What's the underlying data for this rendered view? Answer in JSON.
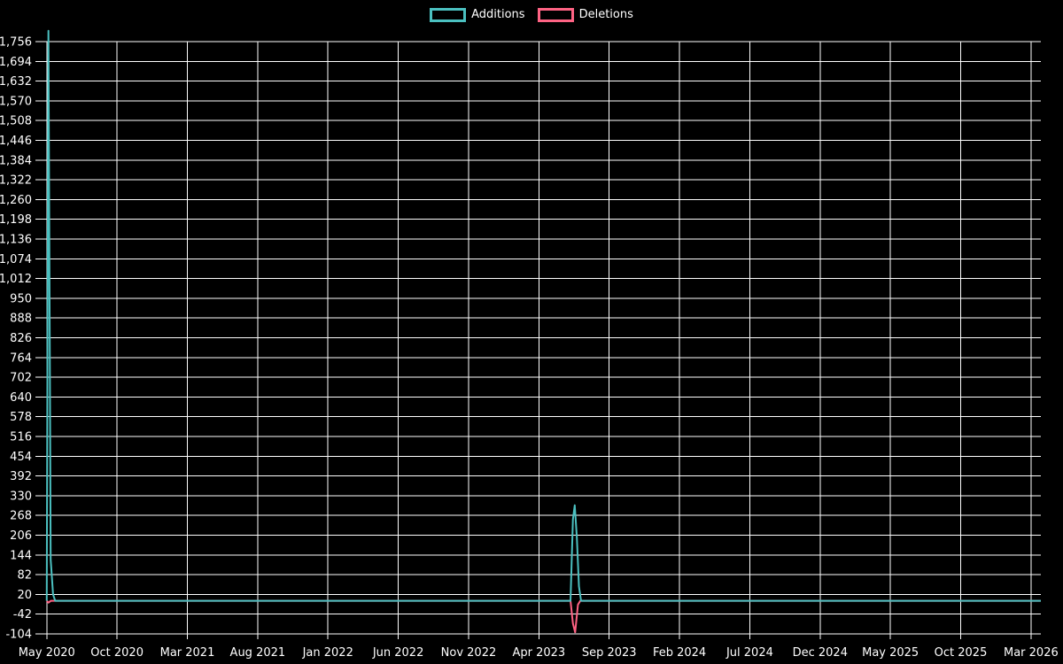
{
  "chart_data": {
    "type": "line",
    "title": "",
    "legend_position": "top-center",
    "background_color": "#000000",
    "text_color": "#ffffff",
    "grid": {
      "shown": true,
      "color": "#ffffff"
    },
    "x_axis": {
      "tick_labels": [
        "May 2020",
        "Oct 2020",
        "Mar 2021",
        "Aug 2021",
        "Jan 2022",
        "Jun 2022",
        "Nov 2022",
        "Apr 2023",
        "Sep 2023",
        "Feb 2024",
        "Jul 2024",
        "Dec 2024",
        "May 2025",
        "Oct 2025",
        "Mar 2026"
      ],
      "tick_spacing_months": 5,
      "axis_range_months": [
        -0.3,
        70.7
      ]
    },
    "y_axis": {
      "min": -104,
      "max": 1756,
      "step": 62,
      "tick_labels": [
        "1,756",
        "1,694",
        "1,632",
        "1,570",
        "1,508",
        "1,446",
        "1,384",
        "1,322",
        "1,260",
        "1,198",
        "1,136",
        "1,074",
        "1,012",
        "950",
        "888",
        "826",
        "764",
        "702",
        "640",
        "578",
        "516",
        "454",
        "392",
        "330",
        "268",
        "206",
        "144",
        "82",
        "20",
        "-42",
        "-104"
      ]
    },
    "series": [
      {
        "name": "Additions",
        "color": "#4bc0c0",
        "points_month_value": [
          [
            0,
            0
          ],
          [
            0.12,
            1790
          ],
          [
            0.28,
            130
          ],
          [
            0.45,
            20
          ],
          [
            0.6,
            0
          ],
          [
            37.25,
            0
          ],
          [
            37.42,
            255
          ],
          [
            37.55,
            300
          ],
          [
            37.7,
            200
          ],
          [
            37.85,
            45
          ],
          [
            38.0,
            0
          ],
          [
            70.7,
            0
          ]
        ]
      },
      {
        "name": "Deletions",
        "color": "#ff6384",
        "points_month_value": [
          [
            0,
            0
          ],
          [
            0.12,
            -6
          ],
          [
            0.3,
            0
          ],
          [
            37.25,
            0
          ],
          [
            37.42,
            -71
          ],
          [
            37.58,
            -99
          ],
          [
            37.78,
            -12
          ],
          [
            37.95,
            0
          ],
          [
            70.7,
            0
          ]
        ]
      }
    ]
  }
}
